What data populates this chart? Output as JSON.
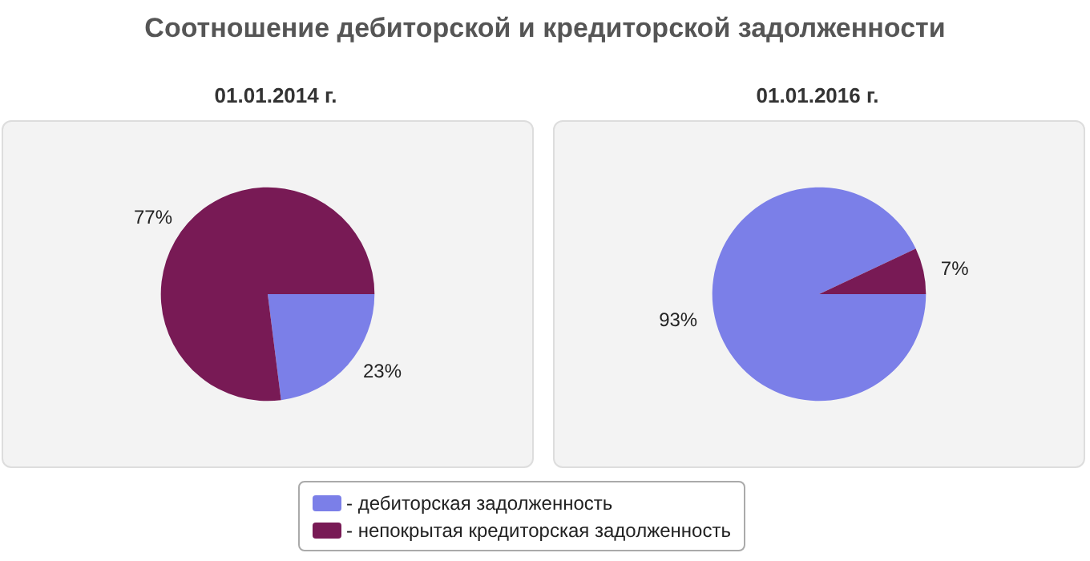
{
  "chart_data": [
    {
      "type": "pie",
      "title": "Соотношение дебиторской и кредиторской задолженности",
      "subtitle": "01.01.2014 г.",
      "categories": [
        "- дебиторская задолженность",
        "- непокрытая кредиторская задолженность"
      ],
      "values": [
        23,
        77
      ],
      "value_labels": [
        "23%",
        "77%"
      ],
      "colors": [
        "#7b7fe8",
        "#781a55"
      ],
      "legend": "bottom"
    },
    {
      "type": "pie",
      "title": "01.01.2016 г.",
      "categories": [
        null,
        null
      ],
      "values": [
        93,
        7
      ],
      "value_labels": [
        "93%",
        "7%"
      ],
      "colors": [
        "#7b7fe8",
        "#781a55"
      ]
    }
  ]
}
